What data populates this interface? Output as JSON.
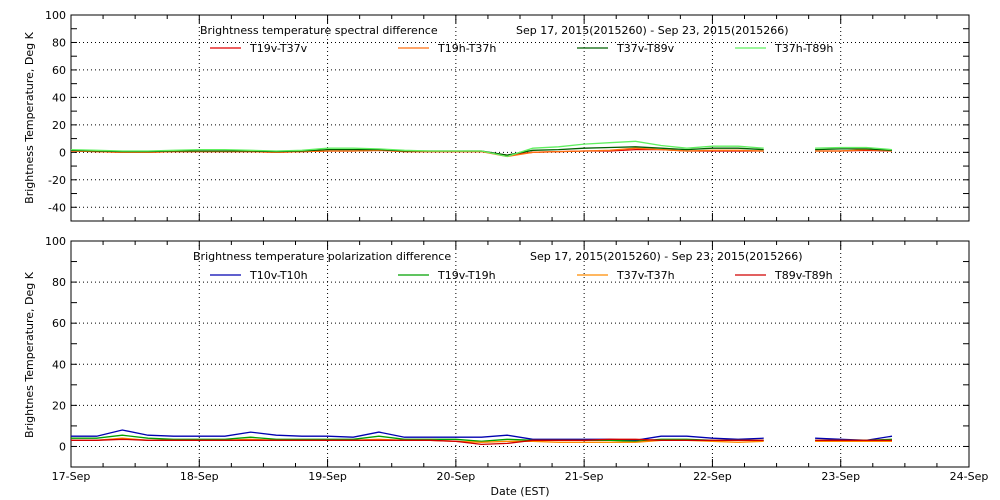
{
  "chart_data": [
    {
      "type": "line",
      "title": "Brightness temperature spectral difference",
      "date_range": "Sep 17, 2015(2015260) - Sep 23, 2015(2015266)",
      "ylabel": "Brightness Temperature, Deg K",
      "xlabel": "",
      "ylim": [
        -50,
        100
      ],
      "yticks": [
        -40,
        -20,
        0,
        20,
        40,
        60,
        80,
        100
      ],
      "xticks": [
        "17-Sep",
        "18-Sep",
        "19-Sep",
        "20-Sep",
        "21-Sep",
        "22-Sep",
        "23-Sep",
        "24-Sep"
      ],
      "x_days": [
        0,
        0.2,
        0.4,
        0.6,
        0.8,
        1,
        1.2,
        1.4,
        1.6,
        1.8,
        2,
        2.2,
        2.4,
        2.6,
        2.8,
        3,
        3.2,
        3.4,
        3.6,
        3.8,
        4,
        4.2,
        4.4,
        4.6,
        4.8,
        5,
        5.2,
        5.4,
        5.6,
        5.8,
        6,
        6.2,
        6.4
      ],
      "series": [
        {
          "name": "T19v-T37v",
          "color": "#e00000",
          "values": [
            1,
            0.5,
            0,
            0,
            0.5,
            0.5,
            0.5,
            0.5,
            0,
            0.5,
            1,
            1,
            1.5,
            0.5,
            0.5,
            0.5,
            0.5,
            -2,
            0,
            0.5,
            1,
            1,
            2,
            2,
            1,
            1,
            1,
            1,
            null,
            1,
            1,
            1.5,
            1
          ]
        },
        {
          "name": "T19h-T37h",
          "color": "#ff7010",
          "values": [
            1,
            0.5,
            0,
            0,
            0.5,
            0.5,
            0.5,
            0.5,
            0,
            0.5,
            1,
            1,
            1.5,
            0.5,
            0.5,
            0.5,
            0.5,
            -3,
            0,
            0.5,
            1,
            1.5,
            3,
            2,
            1,
            1.5,
            1.5,
            1,
            null,
            1,
            1,
            2,
            1
          ]
        },
        {
          "name": "T37v-T89v",
          "color": "#006000",
          "values": [
            1.5,
            1,
            0.5,
            0.5,
            1,
            1,
            1,
            1,
            0.5,
            1,
            2,
            2,
            2,
            1,
            1,
            1,
            1,
            -2,
            1.5,
            2,
            3,
            3.5,
            4,
            3,
            2,
            3,
            3,
            2,
            null,
            2,
            2.5,
            2.5,
            1.5
          ]
        },
        {
          "name": "T37h-T89h",
          "color": "#60f060",
          "values": [
            2,
            1.5,
            1,
            1,
            1.5,
            2,
            2,
            1.5,
            1,
            1.5,
            3,
            3,
            2.5,
            1.5,
            1,
            1,
            1,
            -3,
            3,
            4,
            6,
            7,
            8,
            5,
            3,
            4.5,
            4.5,
            3,
            null,
            3,
            3.5,
            3.5,
            2
          ]
        }
      ]
    },
    {
      "type": "line",
      "title": "Brightness temperature polarization difference",
      "date_range": "Sep 17, 2015(2015260) - Sep 23, 2015(2015266)",
      "ylabel": "Brightnes Temperature, Deg K",
      "xlabel": "Date (EST)",
      "ylim": [
        -10,
        100
      ],
      "yticks": [
        0,
        20,
        40,
        60,
        80,
        100
      ],
      "xticks": [
        "17-Sep",
        "18-Sep",
        "19-Sep",
        "20-Sep",
        "21-Sep",
        "22-Sep",
        "23-Sep",
        "24-Sep"
      ],
      "x_days": [
        0,
        0.2,
        0.4,
        0.6,
        0.8,
        1,
        1.2,
        1.4,
        1.6,
        1.8,
        2,
        2.2,
        2.4,
        2.6,
        2.8,
        3,
        3.2,
        3.4,
        3.6,
        3.8,
        4,
        4.2,
        4.4,
        4.6,
        4.8,
        5,
        5.2,
        5.4,
        5.6,
        5.8,
        6,
        6.2,
        6.4
      ],
      "series": [
        {
          "name": "T10v-T10h",
          "color": "#0000b0",
          "values": [
            5,
            5,
            8,
            5.5,
            5,
            5,
            5,
            7,
            5.5,
            5,
            5,
            4.5,
            7,
            4.5,
            4.5,
            4.5,
            4.5,
            5.5,
            3.5,
            3.5,
            3.5,
            3.5,
            3,
            5,
            5,
            4,
            3.5,
            4,
            null,
            4,
            3.5,
            3,
            5
          ]
        },
        {
          "name": "T19v-T19h",
          "color": "#00a000",
          "values": [
            4,
            4,
            5.5,
            4,
            3.5,
            3.5,
            3.5,
            4.5,
            3.5,
            3.5,
            3.5,
            3.5,
            5,
            3.5,
            3.5,
            3.5,
            2.5,
            3.5,
            3,
            3,
            3,
            3,
            2.5,
            3.5,
            3.5,
            3,
            3,
            3,
            null,
            3,
            3,
            3,
            3.5
          ]
        },
        {
          "name": "T37v-T37h",
          "color": "#ff8c00",
          "values": [
            3,
            3,
            4,
            3,
            3,
            3,
            3,
            3.5,
            3,
            3,
            3,
            3,
            3.5,
            3,
            3,
            2.5,
            2,
            2.5,
            2.5,
            2,
            2,
            2,
            2,
            3,
            3,
            2.5,
            2,
            2.5,
            null,
            2.5,
            2.5,
            2.5,
            2.5
          ]
        },
        {
          "name": "T89v-T89h",
          "color": "#d00000",
          "values": [
            3,
            3,
            3.5,
            3,
            3,
            3,
            3,
            3,
            3,
            3,
            3,
            3,
            3,
            3,
            3,
            2.5,
            1,
            1.5,
            3,
            3,
            3,
            3.5,
            3.5,
            3,
            3,
            3,
            3,
            3,
            null,
            3,
            3,
            3,
            3
          ]
        }
      ]
    }
  ]
}
